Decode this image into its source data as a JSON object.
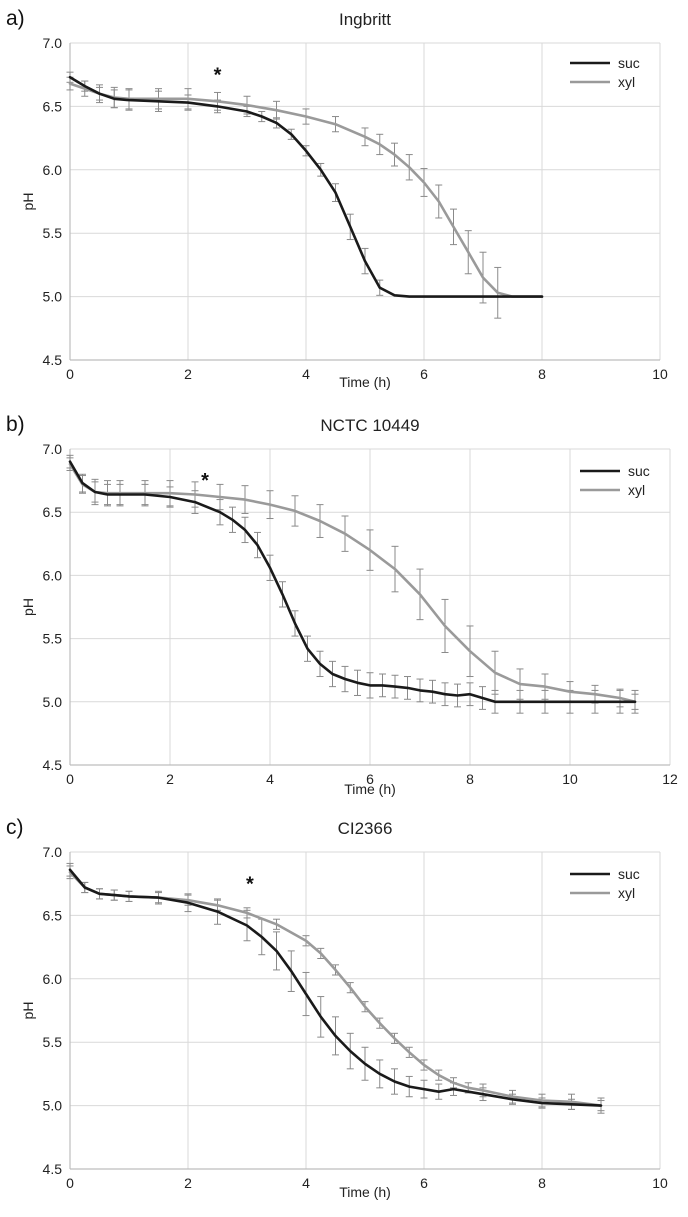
{
  "chart_data": [
    {
      "type": "line",
      "panel": "a)",
      "title": "Ingbritt",
      "xlabel": "Time (h)",
      "ylabel": "pH",
      "xlim": [
        0,
        10
      ],
      "ylim": [
        4.5,
        7.0
      ],
      "xticks": [
        "0",
        "2",
        "4",
        "6",
        "8",
        "10"
      ],
      "yticks": [
        "4.5",
        "5.0",
        "5.5",
        "6.0",
        "6.5",
        "7.0"
      ],
      "grid": true,
      "legend": "top-right",
      "annotation": {
        "text": "*",
        "x": 2.5
      },
      "series": [
        {
          "name": "suc",
          "color": "#1a1a1a",
          "x": [
            0,
            0.25,
            0.5,
            0.75,
            1.0,
            1.5,
            2.0,
            2.5,
            3.0,
            3.25,
            3.5,
            3.75,
            4.0,
            4.25,
            4.5,
            4.75,
            5.0,
            5.25,
            5.5,
            5.75,
            6.0,
            6.5,
            7.0,
            7.5,
            8.0
          ],
          "y": [
            6.73,
            6.66,
            6.6,
            6.56,
            6.55,
            6.54,
            6.53,
            6.5,
            6.46,
            6.42,
            6.37,
            6.28,
            6.15,
            6.0,
            5.82,
            5.55,
            5.28,
            5.07,
            5.01,
            5.0,
            5.0,
            5.0,
            5.0,
            5.0,
            5.0
          ],
          "err": [
            0.04,
            0.04,
            0.05,
            0.07,
            0.08,
            0.08,
            0.06,
            0.05,
            0.04,
            0.04,
            0.04,
            0.04,
            0.04,
            0.05,
            0.07,
            0.1,
            0.1,
            0.06,
            0,
            0,
            0,
            0,
            0,
            0,
            0
          ]
        },
        {
          "name": "xyl",
          "color": "#9a9a9a",
          "x": [
            0,
            0.25,
            0.5,
            0.75,
            1.0,
            1.5,
            2.0,
            2.5,
            3.0,
            3.5,
            4.0,
            4.5,
            5.0,
            5.25,
            5.5,
            5.75,
            6.0,
            6.25,
            6.5,
            6.75,
            7.0,
            7.25,
            7.5,
            7.75,
            8.0
          ],
          "y": [
            6.68,
            6.64,
            6.6,
            6.57,
            6.56,
            6.56,
            6.56,
            6.54,
            6.51,
            6.47,
            6.42,
            6.36,
            6.26,
            6.2,
            6.12,
            6.02,
            5.9,
            5.75,
            5.55,
            5.35,
            5.15,
            5.03,
            5.0,
            5.0,
            5.0
          ],
          "err": [
            0.05,
            0.06,
            0.07,
            0.08,
            0.08,
            0.08,
            0.08,
            0.07,
            0.07,
            0.07,
            0.06,
            0.06,
            0.07,
            0.08,
            0.09,
            0.1,
            0.11,
            0.13,
            0.14,
            0.17,
            0.2,
            0.2,
            0,
            0,
            0
          ]
        }
      ]
    },
    {
      "type": "line",
      "panel": "b)",
      "title": "NCTC 10449",
      "xlabel": "Time (h)",
      "ylabel": "pH",
      "xlim": [
        0,
        12
      ],
      "ylim": [
        4.5,
        7.0
      ],
      "xticks": [
        "0",
        "2",
        "4",
        "6",
        "8",
        "10",
        "12"
      ],
      "yticks": [
        "4.5",
        "5.0",
        "5.5",
        "6.0",
        "6.5",
        "7.0"
      ],
      "grid": true,
      "legend": "top-right",
      "annotation": {
        "text": "*",
        "x": 2.7
      },
      "series": [
        {
          "name": "suc",
          "color": "#1a1a1a",
          "x": [
            0,
            0.25,
            0.5,
            0.75,
            1.0,
            1.5,
            2.0,
            2.5,
            3.0,
            3.25,
            3.5,
            3.75,
            4.0,
            4.25,
            4.5,
            4.75,
            5.0,
            5.25,
            5.5,
            5.75,
            6.0,
            6.25,
            6.5,
            6.75,
            7.0,
            7.25,
            7.5,
            7.75,
            8.0,
            8.25,
            8.5,
            9.0,
            9.5,
            10.0,
            10.5,
            11.0,
            11.3
          ],
          "y": [
            6.9,
            6.73,
            6.66,
            6.64,
            6.64,
            6.64,
            6.62,
            6.58,
            6.5,
            6.44,
            6.36,
            6.24,
            6.06,
            5.85,
            5.62,
            5.42,
            5.3,
            5.22,
            5.18,
            5.15,
            5.13,
            5.13,
            5.12,
            5.11,
            5.09,
            5.08,
            5.06,
            5.05,
            5.06,
            5.03,
            5.0,
            5.0,
            5.0,
            5.0,
            5.0,
            5.0,
            5.0
          ],
          "err": [
            0.05,
            0.07,
            0.08,
            0.08,
            0.08,
            0.08,
            0.08,
            0.09,
            0.1,
            0.1,
            0.1,
            0.1,
            0.1,
            0.1,
            0.1,
            0.1,
            0.1,
            0.1,
            0.1,
            0.1,
            0.1,
            0.09,
            0.09,
            0.09,
            0.09,
            0.09,
            0.09,
            0.09,
            0.09,
            0.09,
            0.09,
            0.09,
            0.09,
            0.09,
            0.09,
            0.09,
            0.09
          ]
        },
        {
          "name": "xyl",
          "color": "#9a9a9a",
          "x": [
            0,
            0.25,
            0.5,
            0.75,
            1.0,
            1.5,
            2.0,
            2.5,
            3.0,
            3.5,
            4.0,
            4.5,
            5.0,
            5.5,
            6.0,
            6.5,
            7.0,
            7.5,
            8.0,
            8.5,
            9.0,
            9.5,
            10.0,
            10.5,
            11.0,
            11.3
          ],
          "y": [
            6.88,
            6.72,
            6.66,
            6.65,
            6.65,
            6.65,
            6.65,
            6.64,
            6.62,
            6.6,
            6.56,
            6.51,
            6.43,
            6.33,
            6.2,
            6.05,
            5.85,
            5.6,
            5.4,
            5.23,
            5.14,
            5.12,
            5.08,
            5.06,
            5.03,
            5.0
          ],
          "err": [
            0.05,
            0.07,
            0.1,
            0.1,
            0.1,
            0.1,
            0.1,
            0.1,
            0.1,
            0.11,
            0.11,
            0.12,
            0.13,
            0.14,
            0.16,
            0.18,
            0.2,
            0.21,
            0.2,
            0.17,
            0.12,
            0.1,
            0.08,
            0.07,
            0.07,
            0.06
          ]
        }
      ]
    },
    {
      "type": "line",
      "panel": "c)",
      "title": "CI2366",
      "xlabel": "Time (h)",
      "ylabel": "pH",
      "xlim": [
        0,
        10
      ],
      "ylim": [
        4.5,
        7.0
      ],
      "xticks": [
        "0",
        "2",
        "4",
        "6",
        "8",
        "10"
      ],
      "yticks": [
        "4.5",
        "5.0",
        "5.5",
        "6.0",
        "6.5",
        "7.0"
      ],
      "grid": true,
      "legend": "top-right",
      "annotation": {
        "text": "*",
        "x": 3.05
      },
      "series": [
        {
          "name": "suc",
          "color": "#1a1a1a",
          "x": [
            0,
            0.25,
            0.5,
            0.75,
            1.0,
            1.5,
            2.0,
            2.5,
            3.0,
            3.25,
            3.5,
            3.75,
            4.0,
            4.25,
            4.5,
            4.75,
            5.0,
            5.25,
            5.5,
            5.75,
            6.0,
            6.25,
            6.5,
            7.0,
            7.5,
            8.0,
            8.5,
            9.0
          ],
          "y": [
            6.86,
            6.72,
            6.67,
            6.66,
            6.65,
            6.64,
            6.6,
            6.53,
            6.42,
            6.33,
            6.22,
            6.06,
            5.88,
            5.7,
            5.55,
            5.43,
            5.33,
            5.25,
            5.19,
            5.15,
            5.13,
            5.11,
            5.13,
            5.09,
            5.05,
            5.02,
            5.01,
            5.0
          ],
          "err": [
            0.05,
            0.04,
            0.04,
            0.04,
            0.04,
            0.05,
            0.07,
            0.1,
            0.12,
            0.14,
            0.15,
            0.16,
            0.17,
            0.16,
            0.15,
            0.14,
            0.13,
            0.11,
            0.1,
            0.08,
            0.07,
            0.06,
            0.05,
            0.05,
            0.04,
            0.04,
            0.04,
            0.04
          ]
        },
        {
          "name": "xyl",
          "color": "#9a9a9a",
          "x": [
            0,
            0.25,
            0.5,
            0.75,
            1.0,
            1.5,
            2.0,
            2.5,
            3.0,
            3.5,
            4.0,
            4.25,
            4.5,
            4.75,
            5.0,
            5.25,
            5.5,
            5.75,
            6.0,
            6.25,
            6.5,
            6.75,
            7.0,
            7.5,
            8.0,
            8.5,
            9.0
          ],
          "y": [
            6.84,
            6.72,
            6.67,
            6.66,
            6.65,
            6.64,
            6.62,
            6.58,
            6.52,
            6.43,
            6.3,
            6.2,
            6.07,
            5.93,
            5.78,
            5.65,
            5.53,
            5.42,
            5.32,
            5.24,
            5.18,
            5.14,
            5.12,
            5.07,
            5.04,
            5.03,
            5.0
          ],
          "err": [
            0.05,
            0.04,
            0.04,
            0.04,
            0.04,
            0.04,
            0.04,
            0.04,
            0.04,
            0.04,
            0.04,
            0.04,
            0.04,
            0.04,
            0.04,
            0.04,
            0.04,
            0.04,
            0.04,
            0.04,
            0.04,
            0.04,
            0.05,
            0.05,
            0.05,
            0.06,
            0.06
          ]
        }
      ]
    }
  ]
}
